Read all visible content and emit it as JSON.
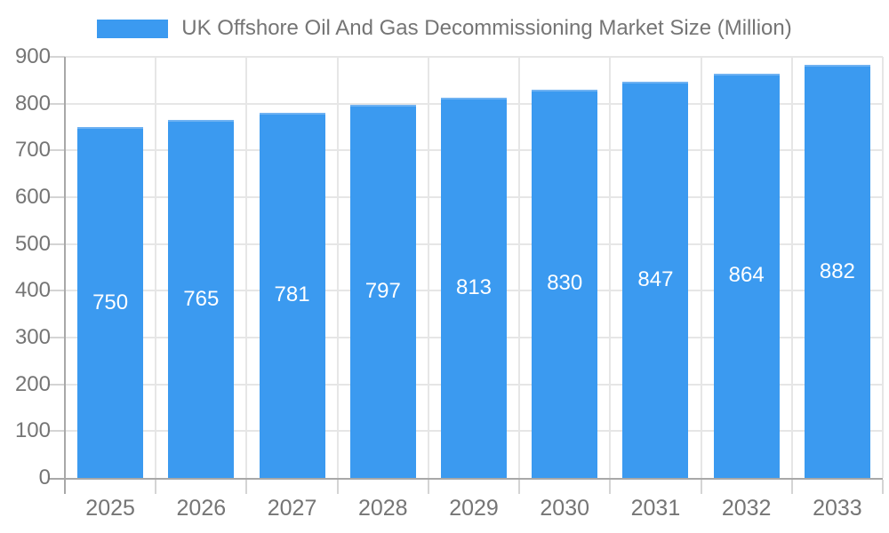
{
  "chart_data": {
    "type": "bar",
    "title": "UK Offshore Oil And Gas Decommissioning Market Size (Million)",
    "legend": [
      "UK Offshore Oil And Gas Decommissioning Market Size (Million)"
    ],
    "legend_position": "top",
    "categories": [
      "2025",
      "2026",
      "2027",
      "2028",
      "2029",
      "2030",
      "2031",
      "2032",
      "2033"
    ],
    "values": [
      750,
      765,
      781,
      797,
      813,
      830,
      847,
      864,
      882
    ],
    "bar_labels": [
      "750",
      "765",
      "781",
      "797",
      "813",
      "830",
      "847",
      "864",
      "882"
    ],
    "xlabel": "",
    "ylabel": "",
    "ylim": [
      0,
      900
    ],
    "ytick_step": 100,
    "ytick_labels": [
      "0",
      "100",
      "200",
      "300",
      "400",
      "500",
      "600",
      "700",
      "800",
      "900"
    ],
    "grid": true,
    "colors": {
      "bar_fill": "#3b9af0",
      "bar_top_edge": "#6fb2f2",
      "bar_label": "#ffffff",
      "axis_text": "#757575",
      "grid_line": "#e6e6e6",
      "axis_line": "#a8a8a8",
      "tick_line": "#d4d4d4",
      "background": "#ffffff"
    }
  }
}
